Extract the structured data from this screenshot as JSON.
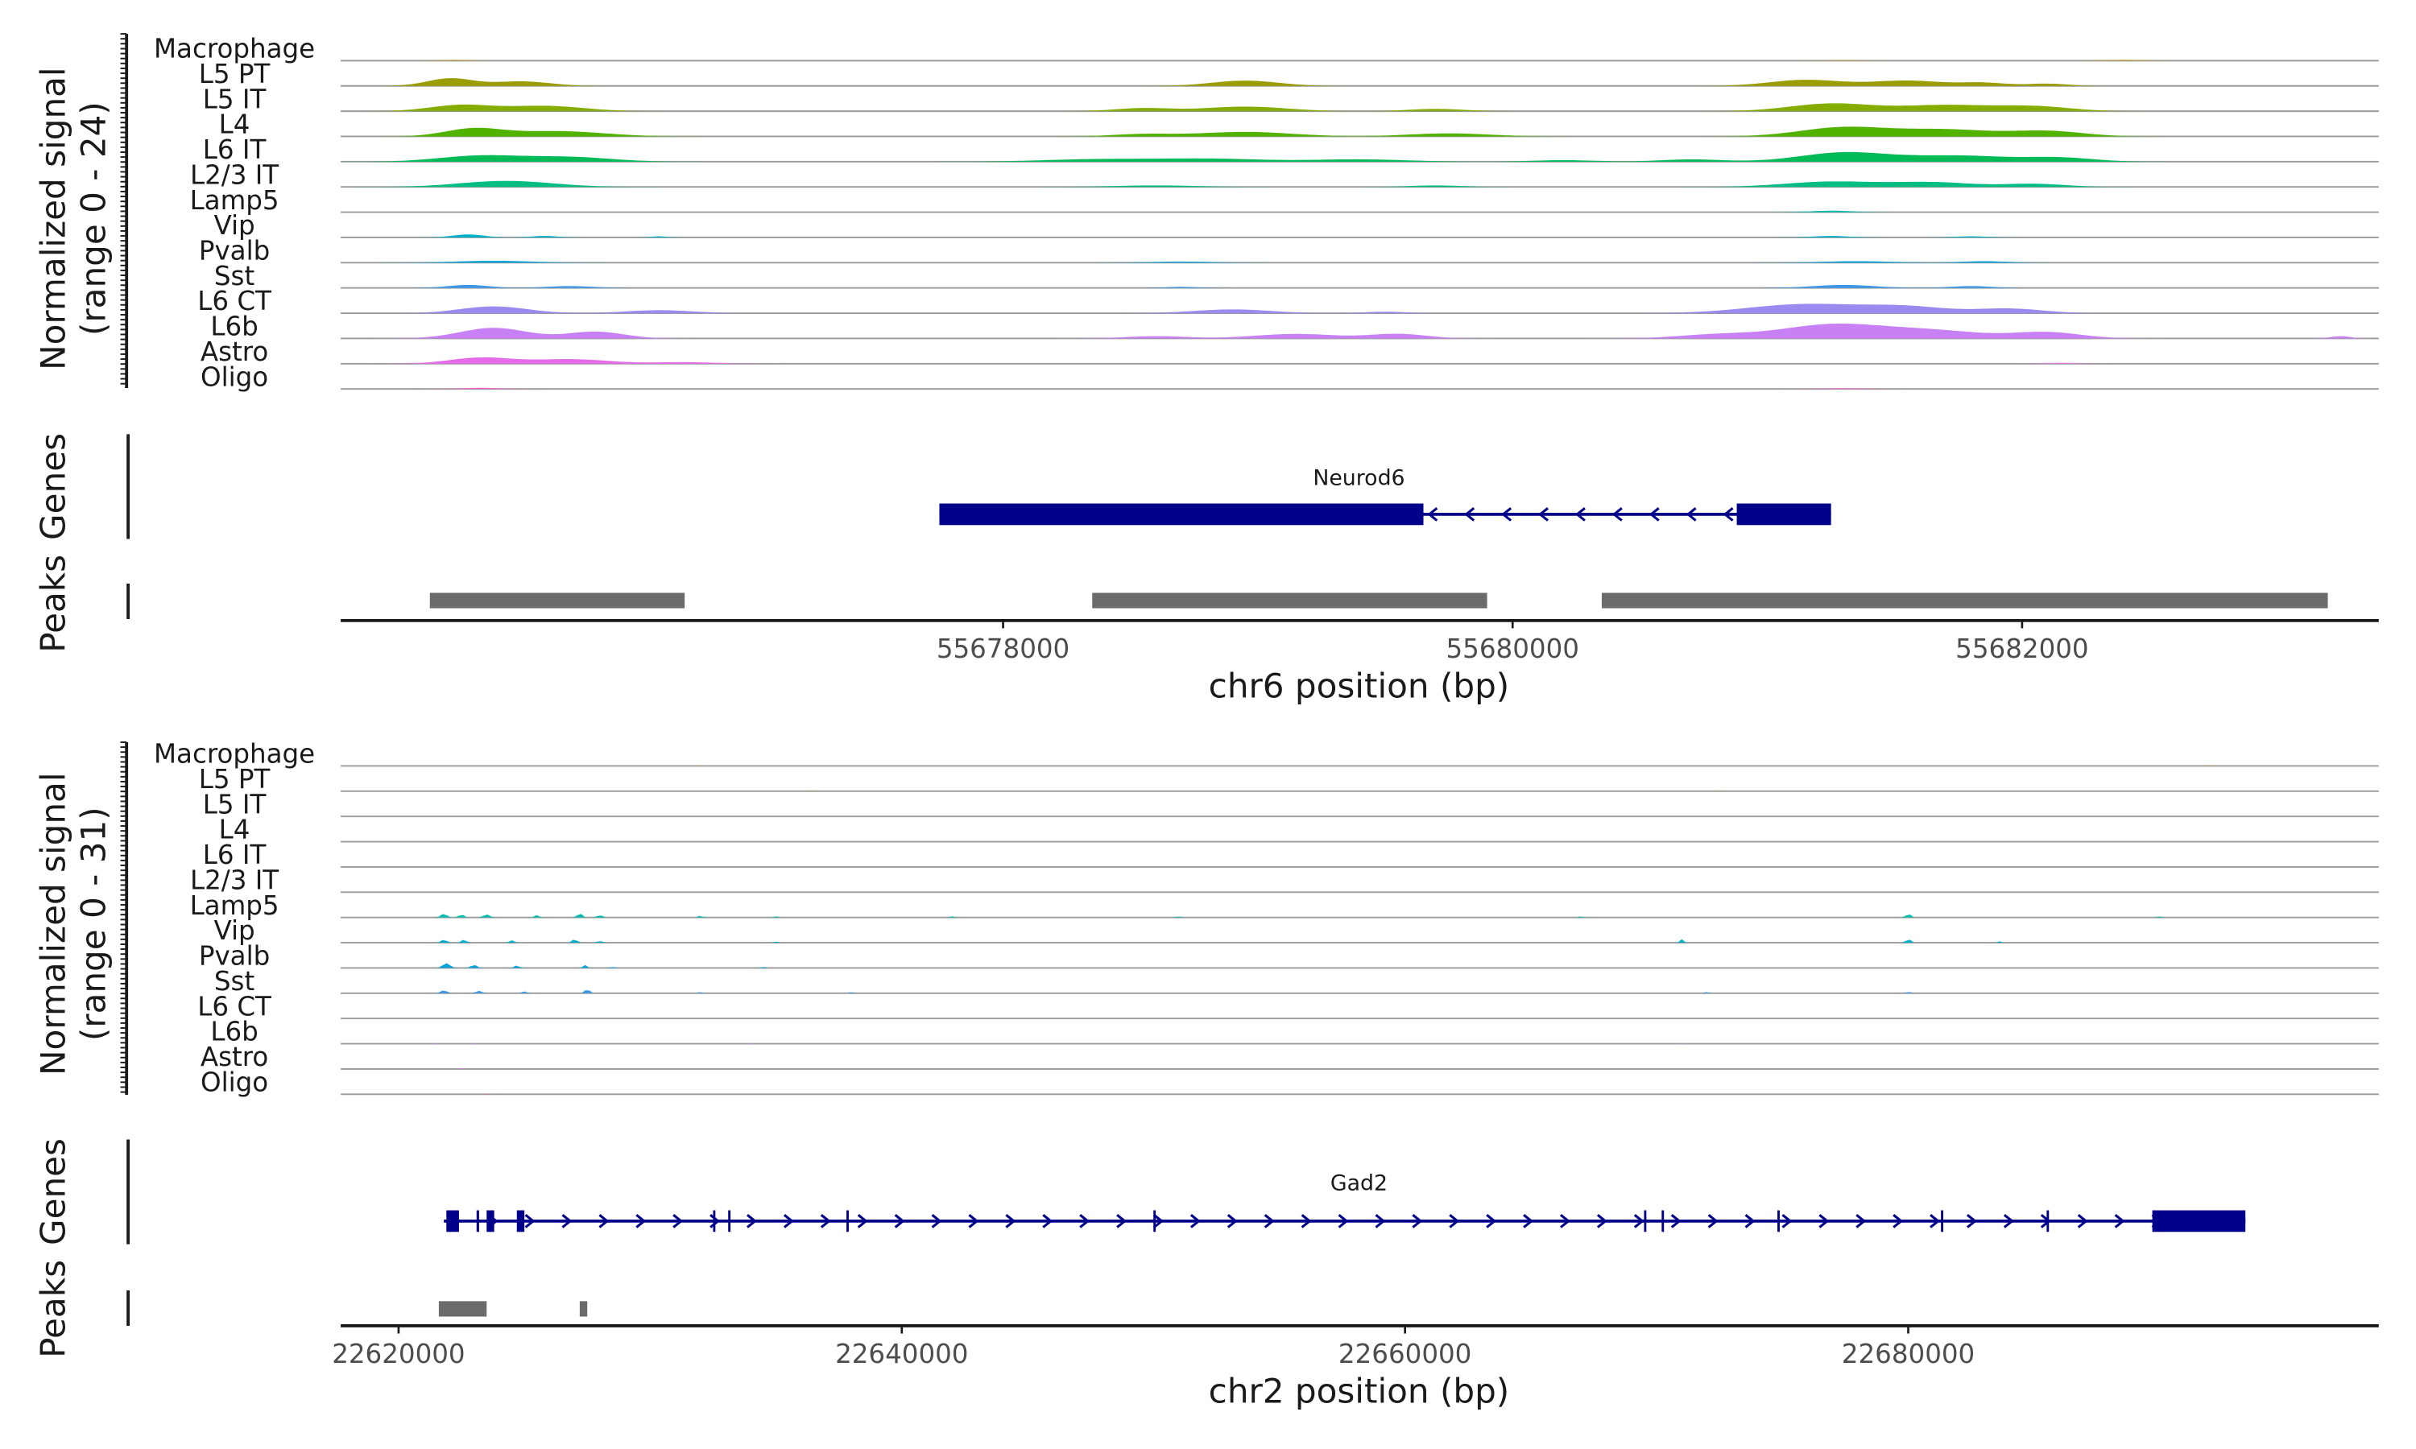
{
  "panels": [
    {
      "ylabel_line1": "Normalized signal",
      "ylabel_line2": "(range 0 - 24)",
      "genes_label": "Genes",
      "peaks_label": "Peaks",
      "gene_name": "Neurod6",
      "xlabel": "chr6 position (bp)"
    },
    {
      "ylabel_line1": "Normalized signal",
      "ylabel_line2": "(range 0 - 31)",
      "genes_label": "Genes",
      "peaks_label": "Peaks",
      "gene_name": "Gad2",
      "xlabel": "chr2 position (bp)"
    }
  ],
  "chart_data": [
    {
      "type": "area",
      "subtype": "coverage-track",
      "region": "chr6",
      "xlim": [
        55675400,
        55683400
      ],
      "ylim": [
        0,
        24
      ],
      "xticks": [
        55678000,
        55680000,
        55682000
      ],
      "tracks": [
        {
          "name": "Macrophage",
          "color": "#c29a1f",
          "peaks": [
            [
              55675850,
              60,
              1.0
            ],
            [
              55682400,
              80,
              1.0
            ],
            [
              55681300,
              90,
              0.5
            ]
          ]
        },
        {
          "name": "L5 PT",
          "color": "#9a9d00",
          "peaks": [
            [
              55675830,
              90,
              10
            ],
            [
              55676110,
              110,
              6
            ],
            [
              55678950,
              130,
              7
            ],
            [
              55681150,
              140,
              8
            ],
            [
              55681550,
              140,
              7
            ],
            [
              55681850,
              90,
              4
            ],
            [
              55682100,
              80,
              3
            ]
          ]
        },
        {
          "name": "L5 IT",
          "color": "#84ad00",
          "peaks": [
            [
              55675870,
              120,
              8
            ],
            [
              55676200,
              150,
              7
            ],
            [
              55678550,
              110,
              4
            ],
            [
              55678950,
              160,
              6
            ],
            [
              55679700,
              110,
              3
            ],
            [
              55681250,
              160,
              10
            ],
            [
              55681700,
              180,
              8
            ],
            [
              55682050,
              140,
              6
            ]
          ]
        },
        {
          "name": "L4",
          "color": "#52b200",
          "peaks": [
            [
              55675920,
              110,
              10
            ],
            [
              55676250,
              180,
              7
            ],
            [
              55678550,
              120,
              3
            ],
            [
              55678950,
              180,
              6
            ],
            [
              55679750,
              160,
              4
            ],
            [
              55681300,
              170,
              12
            ],
            [
              55681700,
              180,
              9
            ],
            [
              55682100,
              140,
              7
            ]
          ]
        },
        {
          "name": "L6 IT",
          "color": "#00ba55",
          "peaks": [
            [
              55675950,
              160,
              8
            ],
            [
              55676300,
              160,
              6
            ],
            [
              55678350,
              200,
              3
            ],
            [
              55678800,
              220,
              4
            ],
            [
              55679400,
              180,
              3
            ],
            [
              55680200,
              120,
              2
            ],
            [
              55680700,
              120,
              3
            ],
            [
              55681300,
              170,
              12
            ],
            [
              55681750,
              200,
              8
            ],
            [
              55682150,
              130,
              5
            ]
          ]
        },
        {
          "name": "L2/3 IT",
          "color": "#00bd84",
          "peaks": [
            [
              55676050,
              180,
              8
            ],
            [
              55678600,
              160,
              2
            ],
            [
              55679700,
              100,
              2
            ],
            [
              55681250,
              180,
              7
            ],
            [
              55681650,
              160,
              6
            ],
            [
              55682050,
              120,
              4
            ]
          ]
        },
        {
          "name": "Lamp5",
          "color": "#00bcae",
          "peaks": [
            [
              55681250,
              80,
              2
            ]
          ]
        },
        {
          "name": "Vip",
          "color": "#00afc8",
          "peaks": [
            [
              55675900,
              60,
              4
            ],
            [
              55676200,
              50,
              2
            ],
            [
              55676650,
              30,
              1.5
            ],
            [
              55681250,
              70,
              2
            ],
            [
              55681800,
              60,
              1.5
            ]
          ]
        },
        {
          "name": "Pvalb",
          "color": "#00a2db",
          "peaks": [
            [
              55676000,
              150,
              2.5
            ],
            [
              55678700,
              120,
              1.5
            ],
            [
              55681350,
              140,
              2
            ],
            [
              55681850,
              90,
              2
            ]
          ]
        },
        {
          "name": "Sst",
          "color": "#3c97e8",
          "peaks": [
            [
              55675900,
              80,
              4
            ],
            [
              55676300,
              90,
              2.5
            ],
            [
              55678700,
              60,
              1.5
            ],
            [
              55681300,
              120,
              4
            ],
            [
              55681800,
              80,
              2.5
            ]
          ]
        },
        {
          "name": "L6 CT",
          "color": "#9c8af0",
          "peaks": [
            [
              55676000,
              130,
              9
            ],
            [
              55676650,
              130,
              4
            ],
            [
              55678900,
              150,
              5
            ],
            [
              55679500,
              80,
              2
            ],
            [
              55681150,
              220,
              12
            ],
            [
              55681550,
              160,
              8
            ],
            [
              55681950,
              130,
              6
            ]
          ]
        },
        {
          "name": "L6b",
          "color": "#c880f5",
          "peaks": [
            [
              55676000,
              130,
              14
            ],
            [
              55676400,
              110,
              9
            ],
            [
              55678600,
              120,
              3
            ],
            [
              55679150,
              160,
              6
            ],
            [
              55679550,
              110,
              6
            ],
            [
              55680800,
              150,
              5
            ],
            [
              55681250,
              200,
              18
            ],
            [
              55681650,
              200,
              10
            ],
            [
              55682100,
              130,
              8
            ],
            [
              55683250,
              40,
              3
            ]
          ]
        },
        {
          "name": "Astro",
          "color": "#e56bea",
          "peaks": [
            [
              55675950,
              120,
              8
            ],
            [
              55676300,
              150,
              6
            ],
            [
              55676750,
              120,
              2
            ],
            [
              55682150,
              60,
              1
            ]
          ]
        },
        {
          "name": "Oligo",
          "color": "#f064bf",
          "peaks": [
            [
              55675950,
              80,
              1.5
            ],
            [
              55681300,
              80,
              1
            ]
          ]
        }
      ],
      "gene": {
        "name": "Neurod6",
        "strand": "-",
        "start": 55677750,
        "end": 55681250,
        "exons": [
          [
            55677750,
            55679650
          ],
          [
            55680880,
            55681250
          ]
        ],
        "thick_exon_ratio": 1.0
      },
      "peaks": [
        [
          55675750,
          55676750
        ],
        [
          55678350,
          55679900
        ],
        [
          55680350,
          55683200
        ]
      ]
    },
    {
      "type": "area",
      "subtype": "coverage-track",
      "region": "chr2",
      "xlim": [
        22617700,
        22698700
      ],
      "ylim": [
        0,
        31
      ],
      "xticks": [
        22620000,
        22640000,
        22660000,
        22680000
      ],
      "tracks": [
        {
          "name": "Macrophage",
          "color": "#c29a1f",
          "peaks": [
            [
              22632000,
              80,
              0.5
            ],
            [
              22692000,
              80,
              0.5
            ]
          ]
        },
        {
          "name": "L5 PT",
          "color": "#9a9d00",
          "peaks": [
            [
              22636500,
              80,
              0.5
            ],
            [
              22672500,
              80,
              0.5
            ]
          ]
        },
        {
          "name": "L5 IT",
          "color": "#84ad00",
          "peaks": []
        },
        {
          "name": "L4",
          "color": "#52b200",
          "peaks": []
        },
        {
          "name": "L6 IT",
          "color": "#00ba55",
          "peaks": []
        },
        {
          "name": "L2/3 IT",
          "color": "#00bd84",
          "peaks": []
        },
        {
          "name": "Lamp5",
          "color": "#00bcae",
          "peaks": [
            [
              22621800,
              120,
              6
            ],
            [
              22622500,
              100,
              5
            ],
            [
              22623500,
              120,
              5
            ],
            [
              22625500,
              90,
              4
            ],
            [
              22627200,
              80,
              8
            ],
            [
              22628000,
              100,
              4
            ],
            [
              22632000,
              80,
              3
            ],
            [
              22635000,
              80,
              2
            ],
            [
              22642000,
              80,
              2
            ],
            [
              22651000,
              80,
              2
            ],
            [
              22667000,
              80,
              2
            ],
            [
              22680000,
              60,
              10
            ],
            [
              22690000,
              80,
              2
            ]
          ]
        },
        {
          "name": "Vip",
          "color": "#00afc8",
          "peaks": [
            [
              22621800,
              110,
              5
            ],
            [
              22622600,
              100,
              5
            ],
            [
              22624500,
              100,
              4
            ],
            [
              22627000,
              80,
              7
            ],
            [
              22628000,
              100,
              3
            ],
            [
              22635000,
              80,
              2
            ],
            [
              22671000,
              70,
              6
            ],
            [
              22680000,
              60,
              10
            ],
            [
              22683600,
              60,
              3
            ]
          ]
        },
        {
          "name": "Pvalb",
          "color": "#00a2db",
          "peaks": [
            [
              22621900,
              140,
              8
            ],
            [
              22623000,
              120,
              5
            ],
            [
              22624700,
              100,
              4
            ],
            [
              22627400,
              80,
              5
            ],
            [
              22628500,
              80,
              2
            ],
            [
              22634500,
              80,
              2
            ]
          ]
        },
        {
          "name": "Sst",
          "color": "#3c97e8",
          "peaks": [
            [
              22621800,
              120,
              5
            ],
            [
              22623200,
              120,
              4
            ],
            [
              22625000,
              100,
              3
            ],
            [
              22627500,
              80,
              8
            ],
            [
              22632000,
              80,
              2
            ],
            [
              22638000,
              80,
              2
            ],
            [
              22672000,
              80,
              2
            ],
            [
              22680000,
              60,
              4
            ]
          ]
        },
        {
          "name": "L6 CT",
          "color": "#9c8af0",
          "peaks": []
        },
        {
          "name": "L6b",
          "color": "#c880f5",
          "peaks": [
            [
              22621500,
              80,
              0.8
            ],
            [
              22623000,
              80,
              0.8
            ],
            [
              22634000,
              80,
              0.8
            ],
            [
              22671000,
              80,
              0.8
            ]
          ]
        },
        {
          "name": "Astro",
          "color": "#e56bea",
          "peaks": [
            [
              22622500,
              80,
              1.5
            ]
          ]
        },
        {
          "name": "Oligo",
          "color": "#f064bf",
          "peaks": [
            [
              22623500,
              80,
              0.8
            ]
          ]
        }
      ],
      "gene": {
        "name": "Gad2",
        "strand": "+",
        "start": 22621800,
        "end": 22693400,
        "exons": [
          [
            22621900,
            22622400
          ],
          [
            22623100,
            22623200
          ],
          [
            22623500,
            22623800
          ],
          [
            22624700,
            22625000
          ],
          [
            22632500,
            22632560
          ],
          [
            22633100,
            22633160
          ],
          [
            22637800,
            22637860
          ],
          [
            22650000,
            22650060
          ],
          [
            22669500,
            22669560
          ],
          [
            22670200,
            22670260
          ],
          [
            22674800,
            22674860
          ],
          [
            22681300,
            22681360
          ],
          [
            22685500,
            22685560
          ],
          [
            22689700,
            22693400
          ]
        ],
        "thick_exon_ratio": 1.0
      },
      "peaks": [
        [
          22621600,
          22623500
        ],
        [
          22627200,
          22627500
        ]
      ]
    }
  ]
}
